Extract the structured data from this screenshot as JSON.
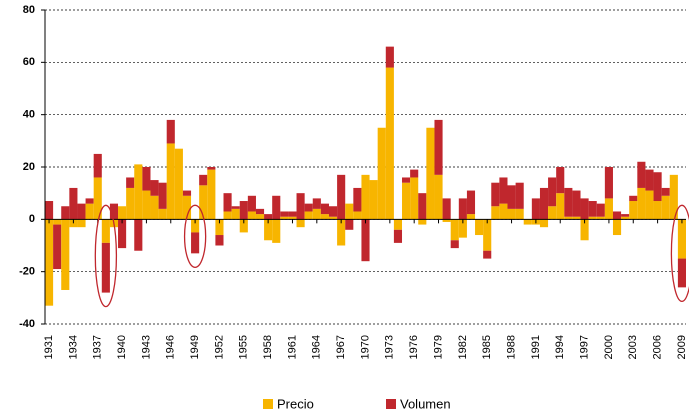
{
  "chart_data": {
    "type": "stacked_bar",
    "categories": [
      "1931",
      null,
      null,
      "1934",
      null,
      null,
      "1937",
      null,
      null,
      "1940",
      null,
      null,
      "1943",
      null,
      null,
      "1946",
      null,
      null,
      "1949",
      null,
      null,
      "1952",
      null,
      null,
      "1955",
      null,
      null,
      "1958",
      null,
      null,
      "1961",
      null,
      null,
      "1964",
      null,
      null,
      "1967",
      null,
      null,
      "1970",
      null,
      null,
      "1973",
      null,
      null,
      "1976",
      null,
      null,
      "1979",
      null,
      null,
      "1982",
      null,
      null,
      "1985",
      null,
      null,
      "1988",
      null,
      null,
      "1991",
      null,
      null,
      "1994",
      null,
      null,
      "1997",
      null,
      null,
      "2000",
      null,
      null,
      "2003",
      null,
      null,
      "2006",
      null,
      null,
      "2009"
    ],
    "series": [
      {
        "name": "Precio",
        "color": "#f7b500",
        "values": [
          -33,
          -2,
          -27,
          -3,
          -3,
          6,
          16,
          -9,
          -3,
          5,
          12,
          21,
          11,
          9,
          4,
          29,
          27,
          9,
          -5,
          13,
          19,
          -6,
          3,
          4,
          -5,
          3,
          2,
          -8,
          -9,
          1,
          1,
          -3,
          3,
          4,
          2,
          1,
          -10,
          6,
          3,
          17,
          15,
          35,
          58,
          -4,
          14,
          16,
          -2,
          35,
          17,
          -1,
          -8,
          -7,
          2,
          -6,
          -12,
          5,
          6,
          4,
          4,
          -2,
          -2,
          -3,
          5,
          10,
          1,
          1,
          -8,
          1,
          1,
          8,
          -6,
          1,
          7,
          12,
          11,
          7,
          9,
          17,
          -15
        ]
      },
      {
        "name": "Volumen",
        "color": "#c0272d",
        "values": [
          7,
          -17,
          5,
          12,
          6,
          2,
          9,
          -19,
          6,
          -11,
          4,
          -12,
          9,
          6,
          10,
          9,
          0,
          2,
          -8,
          4,
          1,
          -4,
          7,
          1,
          7,
          6,
          2,
          2,
          9,
          2,
          2,
          10,
          3,
          4,
          4,
          4,
          17,
          -4,
          9,
          -16,
          0,
          0,
          8,
          -5,
          2,
          3,
          10,
          0,
          21,
          8,
          -3,
          8,
          9,
          0,
          -3,
          9,
          10,
          9,
          10,
          0,
          8,
          12,
          11,
          10,
          11,
          10,
          8,
          6,
          5,
          12,
          3,
          1,
          2,
          10,
          8,
          11,
          3,
          0,
          -11
        ]
      }
    ],
    "ylim": [
      -40,
      80
    ],
    "yticks": [
      -40,
      -20,
      0,
      20,
      40,
      60,
      80
    ],
    "grid": true,
    "legend": "bottom"
  }
}
